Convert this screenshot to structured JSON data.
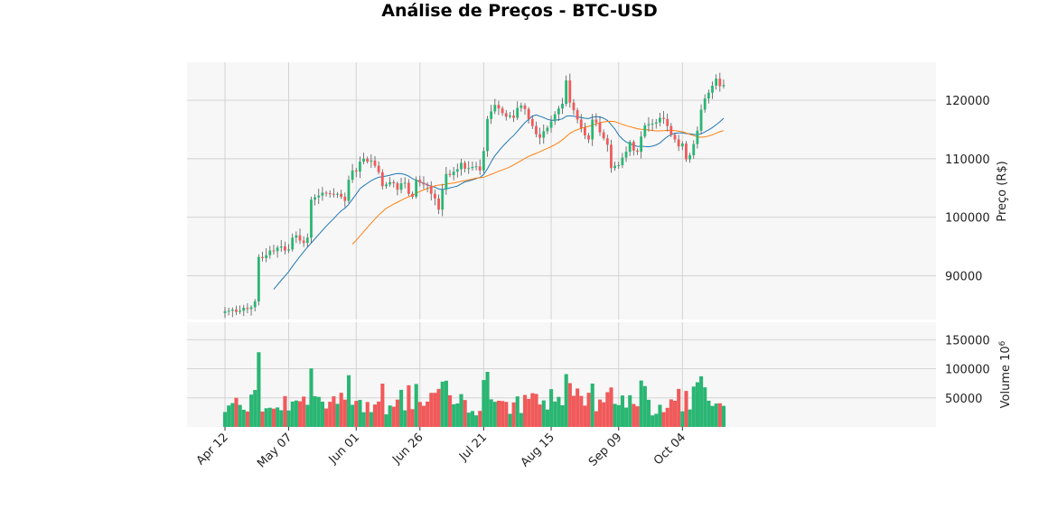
{
  "chart_data": {
    "type": "candlestick",
    "title": "Análise de Preços - BTC-USD",
    "ylabel": "Preço (R$)",
    "volume_label": "Volume  10",
    "volume_exponent": "6",
    "ylim": [
      82500,
      126500
    ],
    "volume_ylim": [
      0,
      180000
    ],
    "yticks": [
      90000,
      100000,
      110000,
      120000
    ],
    "volume_yticks": [
      50000,
      100000,
      150000
    ],
    "xtick_labels": [
      {
        "index": 0,
        "label": "Apr 12"
      },
      {
        "index": 17,
        "label": "May 07"
      },
      {
        "index": 35,
        "label": "Jun 01"
      },
      {
        "index": 52,
        "label": "Jun 26"
      },
      {
        "index": 69,
        "label": "Jul 21"
      },
      {
        "index": 87,
        "label": "Aug 15"
      },
      {
        "index": 105,
        "label": "Sep 09"
      },
      {
        "index": 122,
        "label": "Oct 04"
      }
    ],
    "up_color": "#2ab673",
    "down_color": "#f05a5a",
    "ma_colors": [
      "#1f77b4",
      "#ff7f0e"
    ],
    "bg_color": "#f7f7f7",
    "grid": true,
    "ma_windows": [
      14,
      35
    ],
    "close": [
      83900,
      84000,
      84200,
      83800,
      84000,
      84500,
      84300,
      84600,
      85600,
      93200,
      93000,
      93500,
      94300,
      94200,
      94800,
      95000,
      94300,
      94500,
      96500,
      96900,
      96000,
      95600,
      96500,
      103000,
      103400,
      103700,
      104200,
      104100,
      104000,
      103900,
      104000,
      103500,
      102800,
      106400,
      108000,
      107800,
      109500,
      110000,
      109500,
      109700,
      108800,
      107700,
      105300,
      105600,
      106000,
      105800,
      104700,
      105800,
      105900,
      104000,
      103500,
      106400,
      105900,
      105600,
      105400,
      104000,
      103200,
      101300,
      104700,
      107400,
      107200,
      107800,
      108200,
      109300,
      108300,
      108400,
      108600,
      108700,
      108000,
      111300,
      116800,
      118100,
      119200,
      118600,
      117800,
      117200,
      117400,
      117000,
      118700,
      119100,
      118500,
      116800,
      115600,
      114200,
      113600,
      114700,
      115300,
      116400,
      117600,
      118600,
      119400,
      123400,
      119600,
      118300,
      116700,
      115300,
      114000,
      113300,
      116700,
      116200,
      114500,
      113500,
      112400,
      108400,
      108800,
      108900,
      110200,
      111200,
      112900,
      111400,
      111200,
      113800,
      115700,
      115900,
      116000,
      116200,
      117000,
      116800,
      115600,
      114100,
      113300,
      112100,
      112600,
      109900,
      110600,
      112500,
      114800,
      118400,
      120300,
      121300,
      122500,
      123700,
      122400,
      122600
    ]
  }
}
